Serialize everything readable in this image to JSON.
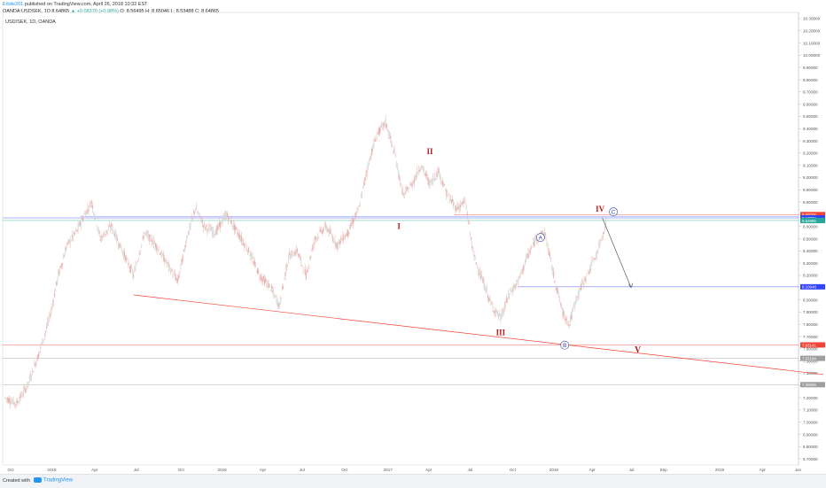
{
  "header": {
    "author": "Eddie201",
    "published": "published on TradingView.com, April 26, 2018 10:32 EST",
    "symbol": "OANDA:USDSEK, 1D",
    "price": "8.64865",
    "change": "▲ +0.08370 (+0.98%)",
    "ohlc": "O: 8.56495 H: 8.65046 L: 8.53488 C: 8.64865"
  },
  "chart_title": "USD/SEK, 1D, OANDA",
  "footer": {
    "created": "Created with",
    "brand": "TradingView"
  },
  "colors": {
    "bull": "#26a69a",
    "bear": "#ef5350",
    "candle": "#e6b3ad",
    "trend": "#f44336",
    "hline": "#7b8cff",
    "wave_red": "#b71c1c",
    "wave_blue": "#3340a6"
  },
  "chart_data": {
    "type": "line",
    "title": "USD/SEK, 1D, OANDA",
    "xlabel": "",
    "ylabel": "",
    "x_ticks": [
      "Oct",
      "2016",
      "Apr",
      "Jul",
      "Oct",
      "2016",
      "Apr",
      "Jul",
      "Oct",
      "2017",
      "Apr",
      "Jul",
      "Oct",
      "2018",
      "Apr",
      "Jul",
      "Sep",
      "2019",
      "Apr",
      "Jun"
    ],
    "y_ticks": [
      "10.30000",
      "10.20000",
      "10.10000",
      "10.00000",
      "9.90000",
      "9.80000",
      "9.70000",
      "9.60000",
      "9.50000",
      "9.40000",
      "9.30000",
      "9.20000",
      "9.10000",
      "9.00000",
      "8.90000",
      "8.80000",
      "8.70000",
      "8.60000",
      "8.50000",
      "8.40000",
      "8.30000",
      "8.20000",
      "8.10000",
      "8.00000",
      "7.90000",
      "7.80000",
      "7.70000",
      "7.60000",
      "7.50000",
      "7.40000",
      "7.30000",
      "7.20000",
      "7.10000",
      "7.00000",
      "6.90000",
      "6.80000",
      "6.70000"
    ],
    "ylim": [
      6.65,
      10.35
    ],
    "series": [
      {
        "values": [
          {
            "t": 0.0,
            "v": 7.2
          },
          {
            "t": 0.5,
            "v": 7.15
          },
          {
            "t": 1.0,
            "v": 7.3
          },
          {
            "t": 1.5,
            "v": 7.55
          },
          {
            "t": 2.0,
            "v": 7.85
          },
          {
            "t": 2.4,
            "v": 8.2
          },
          {
            "t": 2.8,
            "v": 8.45
          },
          {
            "t": 3.2,
            "v": 8.55
          },
          {
            "t": 3.6,
            "v": 8.7
          },
          {
            "t": 3.9,
            "v": 8.8
          },
          {
            "t": 4.3,
            "v": 8.5
          },
          {
            "t": 4.8,
            "v": 8.6
          },
          {
            "t": 5.3,
            "v": 8.4
          },
          {
            "t": 5.8,
            "v": 8.2
          },
          {
            "t": 6.3,
            "v": 8.55
          },
          {
            "t": 6.8,
            "v": 8.45
          },
          {
            "t": 7.3,
            "v": 8.3
          },
          {
            "t": 7.8,
            "v": 8.15
          },
          {
            "t": 8.2,
            "v": 8.5
          },
          {
            "t": 8.6,
            "v": 8.75
          },
          {
            "t": 9.0,
            "v": 8.6
          },
          {
            "t": 9.5,
            "v": 8.55
          },
          {
            "t": 10.0,
            "v": 8.7
          },
          {
            "t": 10.5,
            "v": 8.55
          },
          {
            "t": 11.0,
            "v": 8.4
          },
          {
            "t": 11.5,
            "v": 8.2
          },
          {
            "t": 12.0,
            "v": 8.1
          },
          {
            "t": 12.4,
            "v": 7.95
          },
          {
            "t": 12.8,
            "v": 8.35
          },
          {
            "t": 13.2,
            "v": 8.4
          },
          {
            "t": 13.6,
            "v": 8.2
          },
          {
            "t": 14.0,
            "v": 8.5
          },
          {
            "t": 14.5,
            "v": 8.6
          },
          {
            "t": 15.0,
            "v": 8.45
          },
          {
            "t": 15.5,
            "v": 8.55
          },
          {
            "t": 16.0,
            "v": 8.75
          },
          {
            "t": 16.4,
            "v": 9.1
          },
          {
            "t": 16.8,
            "v": 9.35
          },
          {
            "t": 17.2,
            "v": 9.45
          },
          {
            "t": 17.6,
            "v": 9.2
          },
          {
            "t": 18.0,
            "v": 8.85
          },
          {
            "t": 18.4,
            "v": 8.95
          },
          {
            "t": 18.8,
            "v": 9.1
          },
          {
            "t": 19.2,
            "v": 8.95
          },
          {
            "t": 19.6,
            "v": 9.05
          },
          {
            "t": 20.0,
            "v": 8.85
          },
          {
            "t": 20.4,
            "v": 8.75
          },
          {
            "t": 20.8,
            "v": 8.8
          },
          {
            "t": 21.2,
            "v": 8.35
          },
          {
            "t": 21.6,
            "v": 8.15
          },
          {
            "t": 22.0,
            "v": 7.95
          },
          {
            "t": 22.4,
            "v": 7.85
          },
          {
            "t": 22.8,
            "v": 8.05
          },
          {
            "t": 23.2,
            "v": 8.15
          },
          {
            "t": 23.6,
            "v": 8.35
          },
          {
            "t": 24.0,
            "v": 8.5
          },
          {
            "t": 24.4,
            "v": 8.55
          },
          {
            "t": 24.8,
            "v": 8.2
          },
          {
            "t": 25.2,
            "v": 7.9
          },
          {
            "t": 25.5,
            "v": 7.8
          },
          {
            "t": 25.9,
            "v": 8.05
          },
          {
            "t": 26.3,
            "v": 8.2
          },
          {
            "t": 26.8,
            "v": 8.4
          },
          {
            "t": 27.2,
            "v": 8.65
          }
        ]
      }
    ],
    "annotations": [
      {
        "label": "I",
        "style": "red"
      },
      {
        "label": "II",
        "style": "red"
      },
      {
        "label": "III",
        "style": "red"
      },
      {
        "label": "IV",
        "style": "red"
      },
      {
        "label": "V",
        "style": "red"
      },
      {
        "label": "A",
        "style": "circle"
      },
      {
        "label": "B",
        "style": "circle"
      },
      {
        "label": "C",
        "style": "circle"
      }
    ],
    "horizontal_levels": [
      {
        "value": 8.69706,
        "label": "8.69706",
        "color": "#f44336"
      },
      {
        "value": 8.67004,
        "label": "8.67004",
        "color": "#3344ff"
      },
      {
        "value": 8.64865,
        "label": "8.64865",
        "color": "#26a69a"
      },
      {
        "value": 8.10648,
        "label": "8.10648",
        "color": "#3344ff"
      },
      {
        "value": 7.63141,
        "label": "7.63141",
        "color": "#f44336"
      },
      {
        "value": 7.52194,
        "label": "7.52194",
        "color": "#9e9e9e"
      },
      {
        "value": 7.30655,
        "label": "7.30655",
        "color": "#9e9e9e"
      }
    ],
    "trendline": {
      "from": {
        "t": 5.8,
        "v": 8.04
      },
      "to": {
        "t": 37.0,
        "v": 7.39
      }
    },
    "projection": {
      "from": {
        "t": 27.0,
        "v": 8.67
      },
      "to": {
        "t": 28.3,
        "v": 8.1
      }
    },
    "grid": false
  }
}
